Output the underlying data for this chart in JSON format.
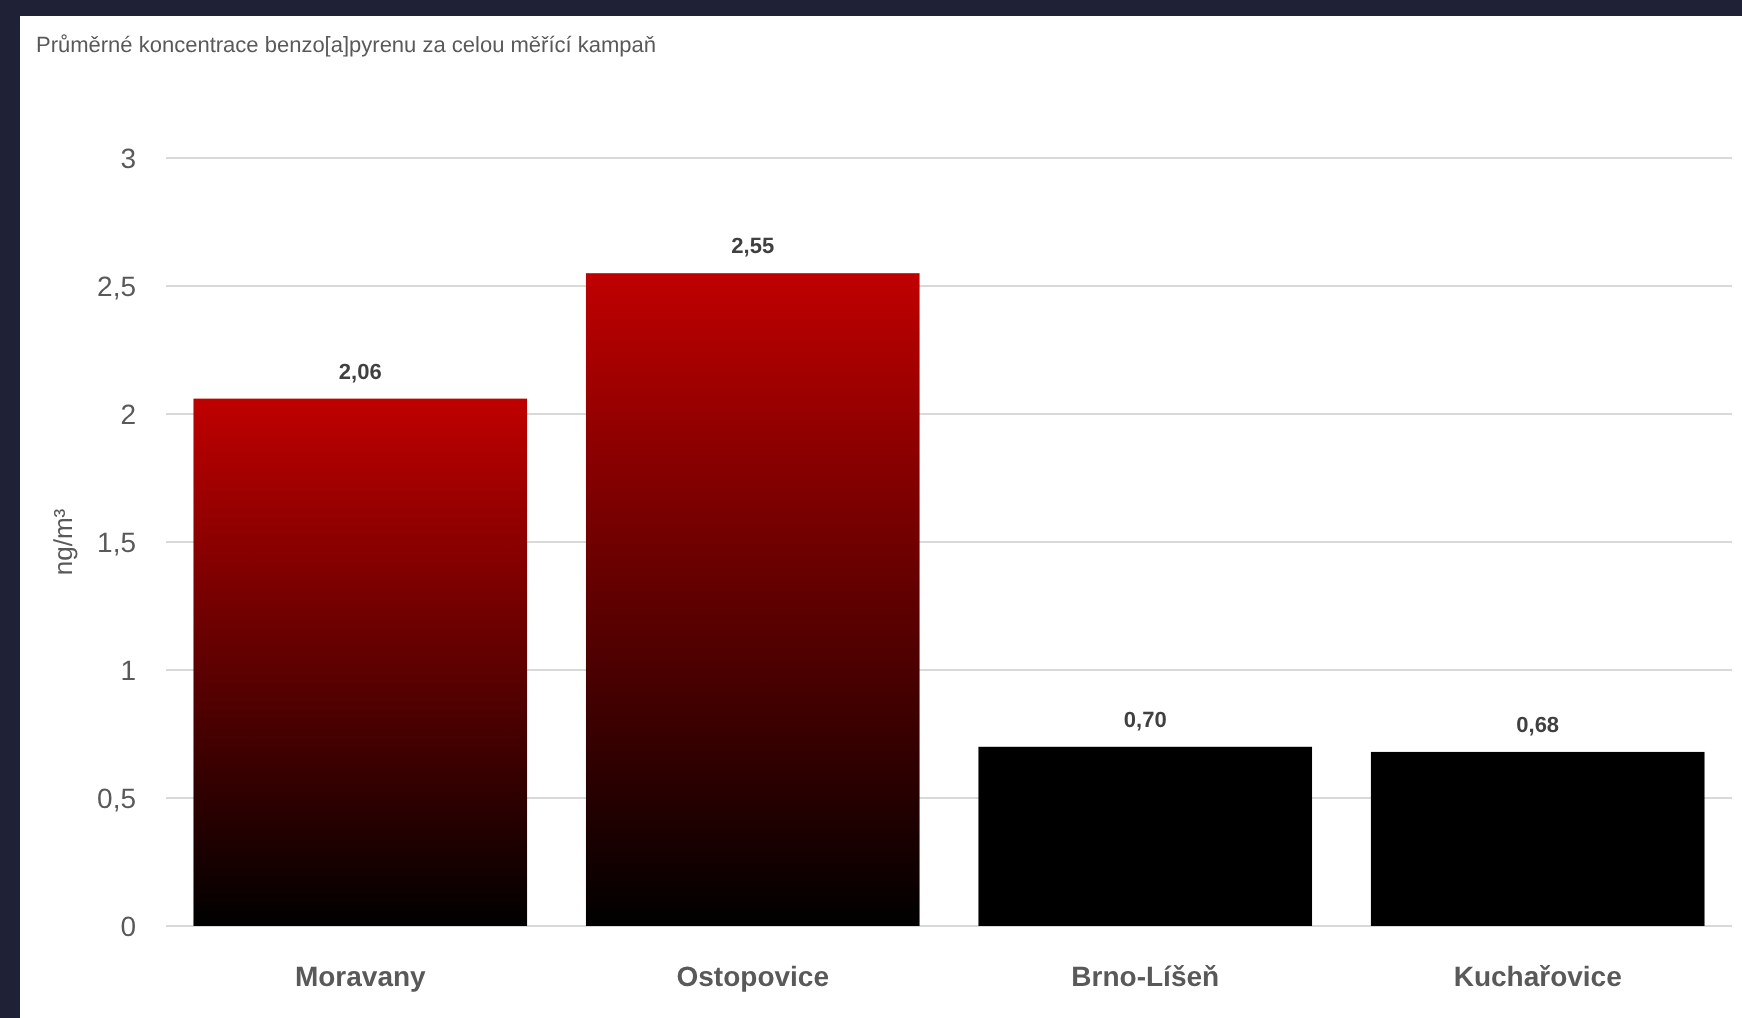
{
  "chart_data": {
    "type": "bar",
    "title": "Průměrné koncentrace benzo[a]pyrenu za celou měřící kampaň",
    "ylabel": "ng/m³",
    "categories": [
      "Moravany",
      "Ostopovice",
      "Brno-Líšeň",
      "Kuchařovice"
    ],
    "values": [
      2.06,
      2.55,
      0.7,
      0.68
    ],
    "value_labels": [
      "2,06",
      "2,55",
      "0,70",
      "0,68"
    ],
    "colors": [
      "#c00000",
      "#c00000",
      "#000000",
      "#000000"
    ],
    "ylim": [
      0,
      3
    ],
    "yticks": [
      0,
      {
        "value": 0.5,
        "label": "0,5"
      },
      1,
      {
        "value": 1.5,
        "label": "1,5"
      },
      2,
      {
        "value": 2.5,
        "label": "2,5"
      },
      3
    ],
    "grid": "y"
  }
}
